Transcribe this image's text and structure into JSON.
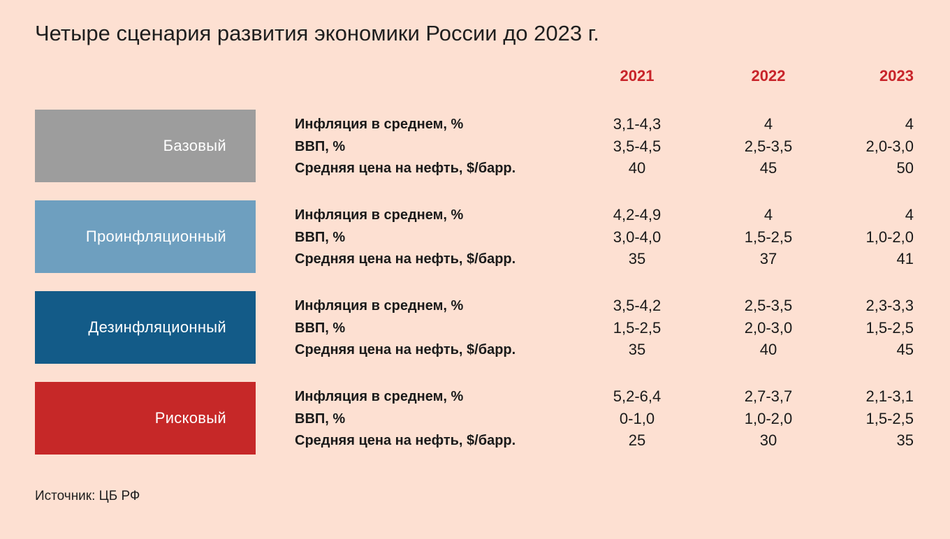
{
  "title": "Четыре сценария развития экономики России до 2023 г.",
  "source": "Источник: ЦБ РФ",
  "chart_data": {
    "type": "table",
    "columns": [
      "2021",
      "2022",
      "2023"
    ],
    "row_labels": [
      "Инфляция в среднем, %",
      "ВВП, %",
      "Средняя цена на нефть, $/барр."
    ],
    "scenarios": [
      {
        "name": "Базовый",
        "color": "#9d9d9d",
        "rows": [
          [
            "3,1-4,3",
            "4",
            "4"
          ],
          [
            "3,5-4,5",
            "2,5-3,5",
            "2,0-3,0"
          ],
          [
            "40",
            "45",
            "50"
          ]
        ]
      },
      {
        "name": "Проинфляционный",
        "color": "#6e9fbf",
        "rows": [
          [
            "4,2-4,9",
            "4",
            "4"
          ],
          [
            "3,0-4,0",
            "1,5-2,5",
            "1,0-2,0"
          ],
          [
            "35",
            "37",
            "41"
          ]
        ]
      },
      {
        "name": "Дезинфляционный",
        "color": "#135b88",
        "rows": [
          [
            "3,5-4,2",
            "2,5-3,5",
            "2,3-3,3"
          ],
          [
            "1,5-2,5",
            "2,0-3,0",
            "1,5-2,5"
          ],
          [
            "35",
            "40",
            "45"
          ]
        ]
      },
      {
        "name": "Рисковый",
        "color": "#c62828",
        "rows": [
          [
            "5,2-6,4",
            "2,7-3,7",
            "2,1-3,1"
          ],
          [
            "0-1,0",
            "1,0-2,0",
            "1,5-2,5"
          ],
          [
            "25",
            "30",
            "35"
          ]
        ]
      }
    ]
  }
}
